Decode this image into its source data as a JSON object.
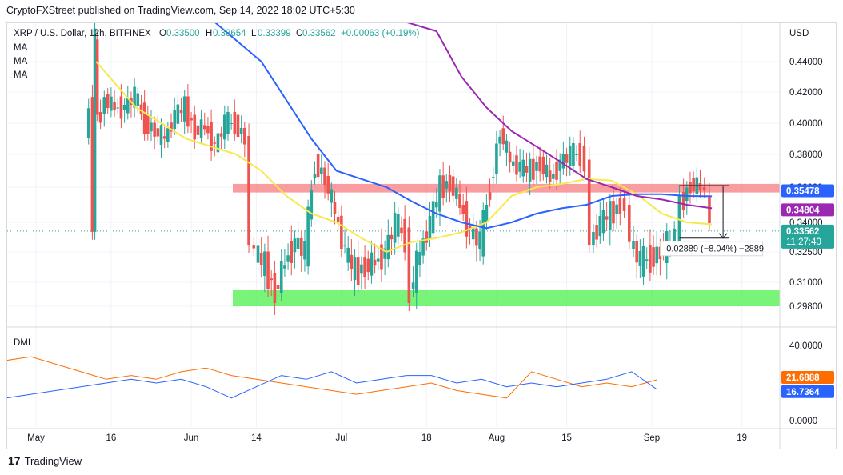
{
  "header": {
    "published": "CryptoFXStreet published on TradingView.com, Sep 14, 2022 18:02 UTC+5:30"
  },
  "legend": {
    "symbol": "XRP / U.S. Dollar, 12h, BITFINEX",
    "o_label": "O",
    "o_value": "0.33500",
    "h_label": "H",
    "h_value": "0.33654",
    "l_label": "L",
    "l_value": "0.33399",
    "c_label": "C",
    "c_value": "0.33562",
    "change": "+0.00063 (+0.19%)",
    "indicators": [
      "MA",
      "MA",
      "MA"
    ]
  },
  "dmi_label": "DMI",
  "measure_label": "-0.02889 (−8.04%) −2889",
  "footer": {
    "brand": "TradingView"
  },
  "colors": {
    "bull": "#26a69a",
    "bear": "#ef5350",
    "ma50": "#f7e94d",
    "ma100": "#2962ff",
    "ma200": "#9c27b0",
    "resistance": "#f77c80",
    "support": "#4cf04c",
    "dmi_plus": "#2962ff",
    "dmi_minus": "#ff6d00"
  },
  "chart_data": {
    "type": "line",
    "title": "XRP / U.S. Dollar, 12h, BITFINEX",
    "currency": "USD",
    "price_axis_ticks": [
      "0.44000",
      "0.42000",
      "0.40000",
      "0.38000",
      "0.36000",
      "0.34000",
      "0.32500",
      "0.31000",
      "0.29800"
    ],
    "price_axis_values": [
      0.44,
      0.42,
      0.4,
      0.38,
      0.36,
      0.34,
      0.325,
      0.31,
      0.298
    ],
    "x_ticks": [
      "May",
      "16",
      "Jun",
      "14",
      "Jul",
      "18",
      "Aug",
      "15",
      "Sep",
      "19"
    ],
    "x_tick_days": [
      0,
      15,
      31,
      44,
      61,
      78,
      92,
      106,
      123,
      141
    ],
    "price_labels": [
      {
        "name": "MA100",
        "value": "0.35478"
      },
      {
        "name": "MA200",
        "value": "0.34804"
      },
      {
        "name": "Last",
        "value": "0.33562",
        "sub": "11:27:40"
      }
    ],
    "zones": [
      {
        "name": "resistance",
        "from": 0.357,
        "to": 0.362
      },
      {
        "name": "support",
        "from": 0.298,
        "to": 0.306
      }
    ],
    "price_path": [
      [
        10,
        0.385
      ],
      [
        11,
        0.415
      ],
      [
        11.5,
        0.337
      ],
      [
        12,
        0.46
      ],
      [
        12.5,
        0.4
      ],
      [
        14,
        0.415
      ],
      [
        16,
        0.41
      ],
      [
        18,
        0.41
      ],
      [
        20,
        0.418
      ],
      [
        22,
        0.4
      ],
      [
        24,
        0.395
      ],
      [
        26,
        0.39
      ],
      [
        28,
        0.405
      ],
      [
        30,
        0.41
      ],
      [
        32,
        0.395
      ],
      [
        34,
        0.398
      ],
      [
        36,
        0.385
      ],
      [
        38,
        0.4
      ],
      [
        40,
        0.4
      ],
      [
        42,
        0.39
      ],
      [
        43,
        0.33
      ],
      [
        44,
        0.325
      ],
      [
        46,
        0.318
      ],
      [
        48,
        0.305
      ],
      [
        50,
        0.32
      ],
      [
        52,
        0.33
      ],
      [
        54,
        0.325
      ],
      [
        56,
        0.375
      ],
      [
        58,
        0.365
      ],
      [
        60,
        0.345
      ],
      [
        62,
        0.325
      ],
      [
        64,
        0.315
      ],
      [
        66,
        0.318
      ],
      [
        68,
        0.32
      ],
      [
        70,
        0.325
      ],
      [
        72,
        0.34
      ],
      [
        74,
        0.332
      ],
      [
        75,
        0.305
      ],
      [
        77,
        0.325
      ],
      [
        79,
        0.34
      ],
      [
        81,
        0.36
      ],
      [
        83,
        0.363
      ],
      [
        85,
        0.35
      ],
      [
        87,
        0.335
      ],
      [
        89,
        0.33
      ],
      [
        91,
        0.36
      ],
      [
        93,
        0.395
      ],
      [
        95,
        0.375
      ],
      [
        97,
        0.372
      ],
      [
        99,
        0.37
      ],
      [
        101,
        0.375
      ],
      [
        103,
        0.365
      ],
      [
        105,
        0.375
      ],
      [
        107,
        0.38
      ],
      [
        109,
        0.38
      ],
      [
        110,
        0.375
      ],
      [
        111,
        0.33
      ],
      [
        113,
        0.34
      ],
      [
        115,
        0.345
      ],
      [
        117,
        0.35
      ],
      [
        118,
        0.35
      ],
      [
        119,
        0.33
      ],
      [
        121,
        0.32
      ],
      [
        123,
        0.322
      ],
      [
        125,
        0.325
      ],
      [
        127,
        0.33
      ],
      [
        128,
        0.335
      ],
      [
        129,
        0.35
      ],
      [
        131,
        0.362
      ],
      [
        133,
        0.36
      ],
      [
        134,
        0.358
      ],
      [
        135,
        0.336
      ]
    ],
    "series": [
      {
        "name": "MA",
        "color": "#f7e94d",
        "points": [
          [
            12,
            0.44
          ],
          [
            20,
            0.41
          ],
          [
            30,
            0.39
          ],
          [
            40,
            0.38
          ],
          [
            45,
            0.37
          ],
          [
            50,
            0.355
          ],
          [
            55,
            0.345
          ],
          [
            60,
            0.34
          ],
          [
            65,
            0.332
          ],
          [
            70,
            0.325
          ],
          [
            75,
            0.33
          ],
          [
            80,
            0.332
          ],
          [
            85,
            0.335
          ],
          [
            90,
            0.34
          ],
          [
            95,
            0.355
          ],
          [
            100,
            0.36
          ],
          [
            105,
            0.362
          ],
          [
            110,
            0.365
          ],
          [
            115,
            0.364
          ],
          [
            120,
            0.356
          ],
          [
            125,
            0.345
          ],
          [
            130,
            0.34
          ],
          [
            135,
            0.339
          ]
        ]
      },
      {
        "name": "MA",
        "color": "#2962ff",
        "points": [
          [
            35,
            0.5
          ],
          [
            45,
            0.44
          ],
          [
            55,
            0.39
          ],
          [
            60,
            0.37
          ],
          [
            65,
            0.365
          ],
          [
            70,
            0.36
          ],
          [
            75,
            0.352
          ],
          [
            80,
            0.345
          ],
          [
            85,
            0.34
          ],
          [
            90,
            0.337
          ],
          [
            95,
            0.34
          ],
          [
            100,
            0.345
          ],
          [
            105,
            0.348
          ],
          [
            110,
            0.35
          ],
          [
            115,
            0.355
          ],
          [
            120,
            0.356
          ],
          [
            125,
            0.356
          ],
          [
            130,
            0.355
          ],
          [
            135,
            0.3548
          ]
        ]
      },
      {
        "name": "MA",
        "color": "#9c27b0",
        "points": [
          [
            72,
            0.5
          ],
          [
            80,
            0.46
          ],
          [
            85,
            0.43
          ],
          [
            90,
            0.41
          ],
          [
            95,
            0.395
          ],
          [
            100,
            0.385
          ],
          [
            105,
            0.375
          ],
          [
            110,
            0.365
          ],
          [
            115,
            0.36
          ],
          [
            120,
            0.355
          ],
          [
            125,
            0.353
          ],
          [
            130,
            0.35
          ],
          [
            135,
            0.348
          ]
        ]
      }
    ],
    "measure": {
      "from_day": 133,
      "to_day": 135,
      "from": 0.361,
      "to": 0.332
    },
    "dmi": {
      "ylim": [
        0,
        40
      ],
      "y_ticks": [
        "40.0000",
        "0.0000"
      ],
      "tick_values": [
        40,
        0
      ],
      "plus_di_label": "16.7364",
      "minus_di_label": "21.6888",
      "plus_di": [
        [
          0,
          10
        ],
        [
          5,
          12
        ],
        [
          10,
          14
        ],
        [
          15,
          16
        ],
        [
          20,
          18
        ],
        [
          25,
          20
        ],
        [
          30,
          22
        ],
        [
          35,
          20
        ],
        [
          40,
          22
        ],
        [
          45,
          18
        ],
        [
          50,
          12
        ],
        [
          55,
          18
        ],
        [
          60,
          24
        ],
        [
          65,
          22
        ],
        [
          70,
          26
        ],
        [
          75,
          20
        ],
        [
          80,
          22
        ],
        [
          85,
          24
        ],
        [
          90,
          24
        ],
        [
          95,
          20
        ],
        [
          100,
          22
        ],
        [
          105,
          18
        ],
        [
          110,
          20
        ],
        [
          115,
          18
        ],
        [
          120,
          20
        ],
        [
          125,
          22
        ],
        [
          130,
          26
        ],
        [
          135,
          16.7
        ]
      ],
      "minus_di": [
        [
          0,
          28
        ],
        [
          5,
          32
        ],
        [
          10,
          34
        ],
        [
          15,
          30
        ],
        [
          20,
          26
        ],
        [
          25,
          22
        ],
        [
          30,
          24
        ],
        [
          35,
          22
        ],
        [
          40,
          26
        ],
        [
          45,
          28
        ],
        [
          50,
          24
        ],
        [
          55,
          22
        ],
        [
          60,
          20
        ],
        [
          65,
          18
        ],
        [
          70,
          16
        ],
        [
          75,
          14
        ],
        [
          80,
          16
        ],
        [
          85,
          18
        ],
        [
          90,
          20
        ],
        [
          95,
          16
        ],
        [
          100,
          14
        ],
        [
          105,
          12
        ],
        [
          110,
          26
        ],
        [
          115,
          22
        ],
        [
          120,
          18
        ],
        [
          125,
          20
        ],
        [
          130,
          18
        ],
        [
          135,
          21.7
        ]
      ]
    }
  }
}
